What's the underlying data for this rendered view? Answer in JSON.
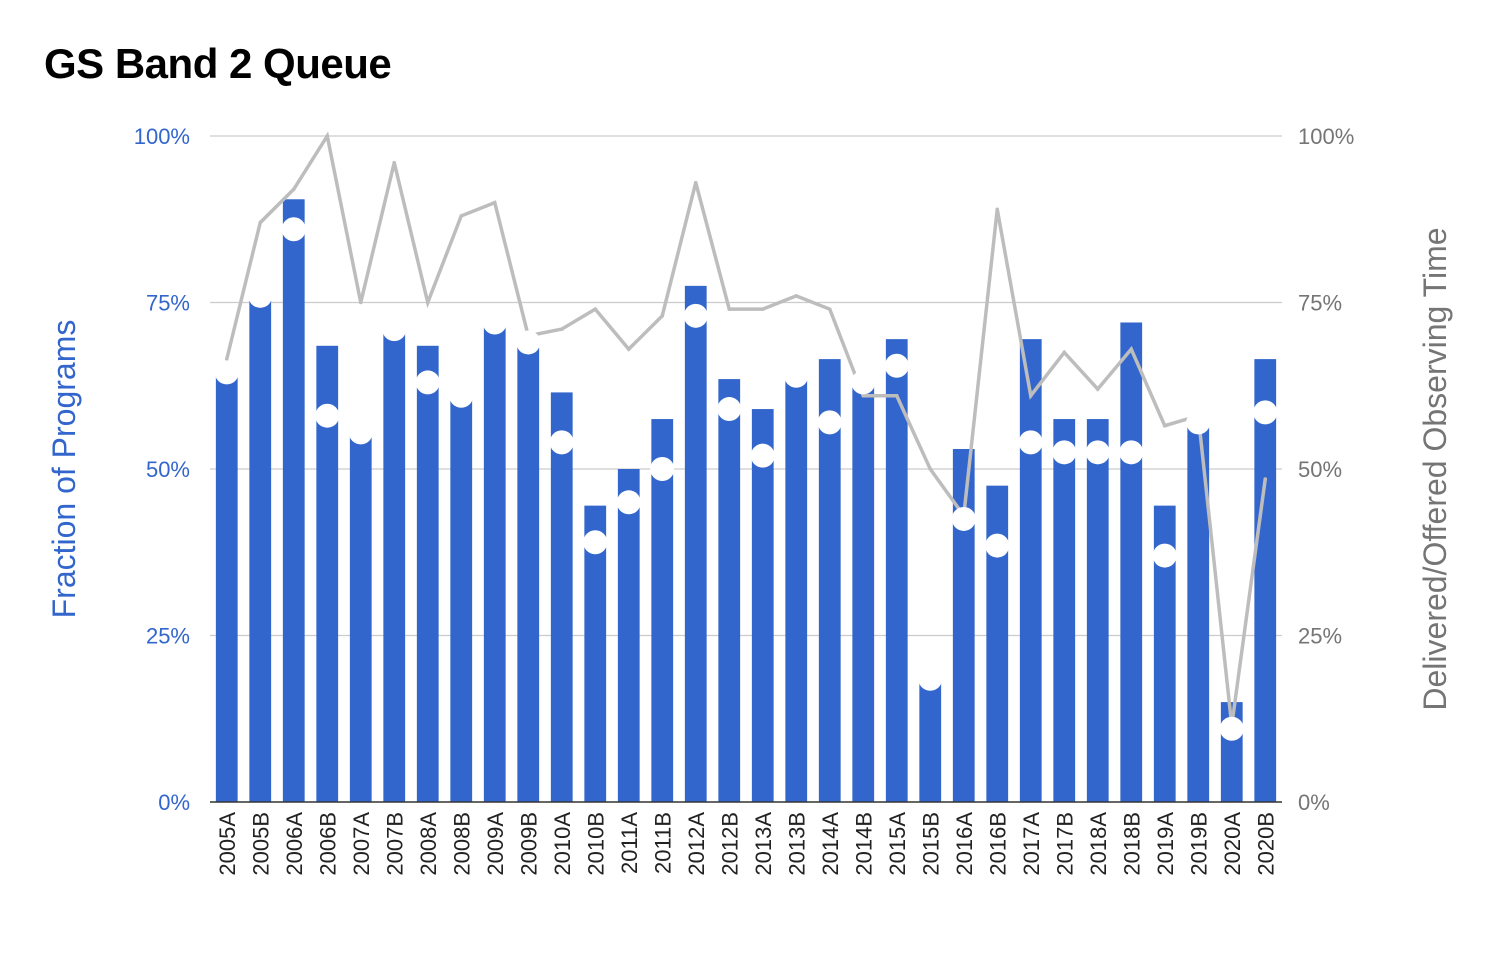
{
  "colors": {
    "bar": "#3366cc",
    "line": "#bdbdbd",
    "dot": "#ffffff",
    "grid": "#cccccc",
    "left_axis_text": "#3366cc",
    "right_axis_text": "#757575",
    "x_axis_text": "#222222"
  },
  "chart_data": {
    "type": "bar",
    "title": "GS Band 2 Queue",
    "ylabel": "Fraction of Programs",
    "y2label": "Delivered/Offered Observing Time",
    "xlabel": "",
    "ylim": [
      0,
      100
    ],
    "y2lim": [
      0,
      100
    ],
    "yticks": [
      "0%",
      "25%",
      "50%",
      "75%",
      "100%"
    ],
    "y2ticks": [
      "0%",
      "25%",
      "50%",
      "75%",
      "100%"
    ],
    "grid": true,
    "categories": [
      "2005A",
      "2005B",
      "2006A",
      "2006B",
      "2007A",
      "2007B",
      "2008A",
      "2008B",
      "2009A",
      "2009B",
      "2010A",
      "2010B",
      "2011A",
      "2011B",
      "2012A",
      "2012B",
      "2013A",
      "2013B",
      "2014A",
      "2014B",
      "2015A",
      "2015B",
      "2016A",
      "2016B",
      "2017A",
      "2017B",
      "2018A",
      "2018B",
      "2019A",
      "2019B",
      "2020A",
      "2020B"
    ],
    "series": [
      {
        "values": [
          64,
          76,
          90.5,
          68.5,
          55,
          71,
          68.5,
          61,
          72,
          69,
          61.5,
          44.5,
          50,
          57.5,
          77.5,
          63.5,
          59,
          64,
          66.5,
          63,
          69.5,
          18.5,
          53,
          47.5,
          69.5,
          57.5,
          57.5,
          72,
          44.5,
          56.5,
          15,
          66.5
        ]
      },
      {
        "values": [
          64.5,
          76,
          86,
          58,
          55.5,
          71,
          63,
          61,
          72,
          69,
          54,
          39,
          45,
          50,
          73,
          59,
          52,
          64,
          57,
          63,
          65.5,
          18.5,
          42.5,
          38.5,
          54,
          52.5,
          52.5,
          52.5,
          37,
          57,
          11,
          58.5
        ]
      },
      {
        "values": [
          66.5,
          87,
          92,
          100,
          75,
          96,
          75,
          88,
          90,
          70,
          71,
          74,
          68,
          73,
          93,
          74,
          74,
          76,
          74,
          61,
          61,
          50,
          43,
          89,
          61,
          67.5,
          62,
          68,
          56.5,
          58,
          11.5,
          48.5
        ]
      }
    ]
  }
}
